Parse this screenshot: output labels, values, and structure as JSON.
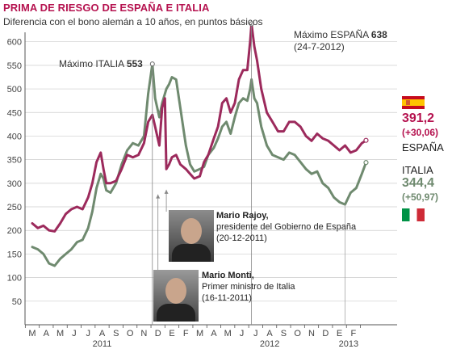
{
  "title": "PRIMA DE RIESGO DE ESPAÑA E ITALIA",
  "subtitle": "Diferencia con el bono alemán a 10 años, en puntos básicos",
  "colors": {
    "espana": "#9c2a5c",
    "italia": "#6f8a6f",
    "axis": "#555555",
    "grid": "#cccccc"
  },
  "legend": {
    "espana": {
      "flag": "spain-flag-icon",
      "value": "391,2",
      "change": "(+30,06)",
      "label": "ESPAÑA"
    },
    "italia": {
      "flag": "italy-flag-icon",
      "value": "344,4",
      "change": "(+50,97)",
      "label": "ITALIA"
    }
  },
  "annotations": {
    "max_espana": {
      "label": "Máximo ESPAÑA",
      "value": "638",
      "date": "(24-7-2012)"
    },
    "max_italia": {
      "label": "Máximo ITALIA",
      "value": "553"
    },
    "rajoy": {
      "name": "Mario Rajoy,",
      "role": "presidente del Gobierno de España",
      "date": "(20-12-2011)"
    },
    "monti": {
      "name": "Mario Monti,",
      "role": "Primer ministro de Italia",
      "date": "(16-11-2011)"
    }
  },
  "chart_data": {
    "type": "line",
    "title": "PRIMA DE RIESGO DE ESPAÑA E ITALIA",
    "xlabel": "",
    "ylabel": "",
    "ylim": [
      0,
      620
    ],
    "yticks": [
      50,
      100,
      150,
      200,
      250,
      300,
      350,
      400,
      450,
      500,
      550,
      600
    ],
    "months": [
      "M",
      "A",
      "M",
      "J",
      "J",
      "A",
      "S",
      "O",
      "N",
      "D",
      "E",
      "F",
      "M",
      "A",
      "M",
      "J",
      "J",
      "A",
      "S",
      "O",
      "N",
      "D",
      "E",
      "F"
    ],
    "years": [
      {
        "label": "2011",
        "month_index": 5
      },
      {
        "label": "2012",
        "month_index": 17
      },
      {
        "label": "2013",
        "month_index": 23
      }
    ],
    "x_unit": "months since 2011-03-01",
    "series": [
      {
        "name": "ESPAÑA",
        "points": [
          [
            0,
            215
          ],
          [
            0.4,
            205
          ],
          [
            0.8,
            210
          ],
          [
            1.2,
            200
          ],
          [
            1.6,
            198
          ],
          [
            2.0,
            215
          ],
          [
            2.4,
            235
          ],
          [
            2.8,
            245
          ],
          [
            3.2,
            250
          ],
          [
            3.6,
            245
          ],
          [
            4.0,
            270
          ],
          [
            4.3,
            300
          ],
          [
            4.6,
            345
          ],
          [
            4.9,
            365
          ],
          [
            5.1,
            330
          ],
          [
            5.3,
            300
          ],
          [
            5.6,
            300
          ],
          [
            6.0,
            305
          ],
          [
            6.4,
            330
          ],
          [
            6.8,
            360
          ],
          [
            7.2,
            355
          ],
          [
            7.6,
            360
          ],
          [
            8.0,
            385
          ],
          [
            8.3,
            430
          ],
          [
            8.6,
            445
          ],
          [
            8.8,
            420
          ],
          [
            9.1,
            380
          ],
          [
            9.3,
            460
          ],
          [
            9.5,
            480
          ],
          [
            9.6,
            330
          ],
          [
            9.8,
            340
          ],
          [
            10.0,
            355
          ],
          [
            10.3,
            360
          ],
          [
            10.6,
            340
          ],
          [
            11.0,
            330
          ],
          [
            11.3,
            320
          ],
          [
            11.6,
            310
          ],
          [
            12.0,
            315
          ],
          [
            12.3,
            345
          ],
          [
            12.6,
            360
          ],
          [
            13.0,
            395
          ],
          [
            13.3,
            420
          ],
          [
            13.6,
            470
          ],
          [
            13.9,
            480
          ],
          [
            14.2,
            450
          ],
          [
            14.5,
            470
          ],
          [
            14.8,
            520
          ],
          [
            15.1,
            540
          ],
          [
            15.4,
            540
          ],
          [
            15.6,
            600
          ],
          [
            15.7,
            638
          ],
          [
            15.9,
            590
          ],
          [
            16.1,
            560
          ],
          [
            16.4,
            500
          ],
          [
            16.8,
            450
          ],
          [
            17.2,
            430
          ],
          [
            17.6,
            410
          ],
          [
            18.0,
            410
          ],
          [
            18.4,
            430
          ],
          [
            18.8,
            430
          ],
          [
            19.2,
            420
          ],
          [
            19.6,
            400
          ],
          [
            20.0,
            390
          ],
          [
            20.4,
            405
          ],
          [
            20.8,
            395
          ],
          [
            21.2,
            390
          ],
          [
            21.6,
            380
          ],
          [
            22.0,
            370
          ],
          [
            22.4,
            380
          ],
          [
            22.8,
            365
          ],
          [
            23.2,
            370
          ],
          [
            23.6,
            385
          ],
          [
            23.9,
            391
          ]
        ]
      },
      {
        "name": "ITALIA",
        "points": [
          [
            0,
            165
          ],
          [
            0.4,
            160
          ],
          [
            0.8,
            150
          ],
          [
            1.2,
            130
          ],
          [
            1.6,
            125
          ],
          [
            2.0,
            140
          ],
          [
            2.4,
            150
          ],
          [
            2.8,
            160
          ],
          [
            3.2,
            175
          ],
          [
            3.6,
            180
          ],
          [
            4.0,
            205
          ],
          [
            4.3,
            240
          ],
          [
            4.6,
            290
          ],
          [
            4.9,
            320
          ],
          [
            5.1,
            310
          ],
          [
            5.3,
            285
          ],
          [
            5.6,
            280
          ],
          [
            6.0,
            300
          ],
          [
            6.4,
            340
          ],
          [
            6.8,
            370
          ],
          [
            7.2,
            385
          ],
          [
            7.6,
            380
          ],
          [
            8.0,
            400
          ],
          [
            8.3,
            490
          ],
          [
            8.6,
            553
          ],
          [
            8.8,
            480
          ],
          [
            9.1,
            440
          ],
          [
            9.3,
            470
          ],
          [
            9.6,
            500
          ],
          [
            9.8,
            510
          ],
          [
            10.0,
            525
          ],
          [
            10.3,
            520
          ],
          [
            10.6,
            460
          ],
          [
            11.0,
            380
          ],
          [
            11.3,
            340
          ],
          [
            11.6,
            325
          ],
          [
            12.0,
            330
          ],
          [
            12.3,
            335
          ],
          [
            12.6,
            360
          ],
          [
            13.0,
            375
          ],
          [
            13.3,
            395
          ],
          [
            13.6,
            420
          ],
          [
            13.9,
            430
          ],
          [
            14.2,
            405
          ],
          [
            14.5,
            440
          ],
          [
            14.8,
            470
          ],
          [
            15.1,
            480
          ],
          [
            15.4,
            475
          ],
          [
            15.6,
            500
          ],
          [
            15.7,
            520
          ],
          [
            15.9,
            480
          ],
          [
            16.1,
            470
          ],
          [
            16.4,
            420
          ],
          [
            16.8,
            380
          ],
          [
            17.2,
            360
          ],
          [
            17.6,
            355
          ],
          [
            18.0,
            350
          ],
          [
            18.4,
            365
          ],
          [
            18.8,
            360
          ],
          [
            19.2,
            345
          ],
          [
            19.6,
            330
          ],
          [
            20.0,
            320
          ],
          [
            20.4,
            325
          ],
          [
            20.8,
            300
          ],
          [
            21.2,
            290
          ],
          [
            21.6,
            270
          ],
          [
            22.0,
            260
          ],
          [
            22.4,
            255
          ],
          [
            22.8,
            280
          ],
          [
            23.2,
            290
          ],
          [
            23.6,
            320
          ],
          [
            23.9,
            344
          ]
        ]
      }
    ]
  }
}
